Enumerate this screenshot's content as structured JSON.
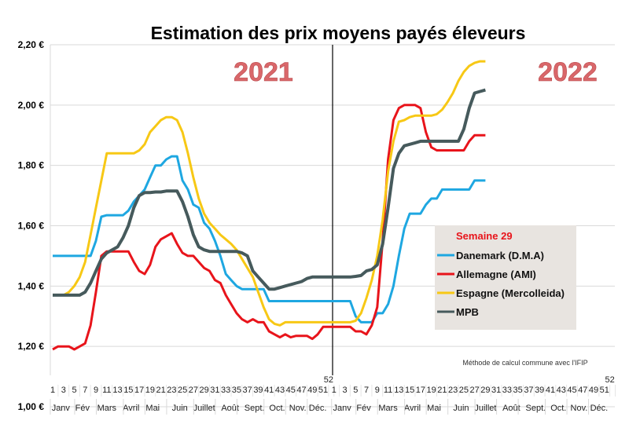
{
  "chart_data": {
    "type": "line",
    "title": "Estimation des prix moyens payés éleveurs",
    "year_labels": [
      "2021",
      "2022"
    ],
    "ylim": [
      1.0,
      2.2
    ],
    "yticks": [
      "1,00 €",
      "1,20 €",
      "1,40 €",
      "1,60 €",
      "1,80 €",
      "2,00 €",
      "2,20 €"
    ],
    "grid": true,
    "x_weeks_per_year": 52,
    "x_tick_labels": [
      "1",
      "3",
      "5",
      "7",
      "9",
      "11",
      "13",
      "15",
      "17",
      "19",
      "21",
      "23",
      "25",
      "27",
      "29",
      "31",
      "33",
      "35",
      "37",
      "39",
      "41",
      "43",
      "45",
      "47",
      "49",
      "51",
      "52"
    ],
    "months": [
      "Janv",
      "Fév",
      "Mars",
      "Avril",
      "Mai",
      "Juin",
      "Juillet",
      "Août",
      "Sept.",
      "Oct.",
      "Nov.",
      "Déc."
    ],
    "legend": {
      "title": "Semaine 29",
      "title_color": "#e8141b",
      "placement": "right",
      "background": "#e8e4e0"
    },
    "note": "Méthode de calcul commune avec l'IFIP",
    "series": [
      {
        "name": "Danemark (D.M.A)",
        "color": "#1ea7e1",
        "y2021": [
          1.5,
          1.5,
          1.5,
          1.5,
          1.5,
          1.5,
          1.5,
          1.5,
          1.55,
          1.63,
          1.635,
          1.635,
          1.635,
          1.635,
          1.65,
          1.68,
          1.7,
          1.72,
          1.76,
          1.8,
          1.8,
          1.82,
          1.83,
          1.83,
          1.75,
          1.72,
          1.67,
          1.66,
          1.61,
          1.59,
          1.55,
          1.5,
          1.44,
          1.42,
          1.4,
          1.39,
          1.39,
          1.39,
          1.39,
          1.39,
          1.35,
          1.35,
          1.35,
          1.35,
          1.35,
          1.35,
          1.35,
          1.35,
          1.35,
          1.35,
          1.35,
          1.35
        ],
        "y2022": [
          1.35,
          1.35,
          1.35,
          1.35,
          1.3,
          1.28,
          1.28,
          1.28,
          1.31,
          1.31,
          1.34,
          1.4,
          1.5,
          1.59,
          1.64,
          1.64,
          1.64,
          1.67,
          1.69,
          1.69,
          1.72,
          1.72,
          1.72,
          1.72,
          1.72,
          1.72,
          1.75,
          1.75,
          1.75
        ]
      },
      {
        "name": "Allemagne (AMI)",
        "color": "#e8141b",
        "y2021": [
          1.19,
          1.2,
          1.2,
          1.2,
          1.19,
          1.2,
          1.21,
          1.27,
          1.38,
          1.5,
          1.515,
          1.515,
          1.515,
          1.515,
          1.515,
          1.48,
          1.45,
          1.44,
          1.47,
          1.53,
          1.555,
          1.565,
          1.575,
          1.54,
          1.51,
          1.5,
          1.5,
          1.48,
          1.46,
          1.45,
          1.42,
          1.41,
          1.37,
          1.34,
          1.31,
          1.29,
          1.28,
          1.29,
          1.28,
          1.28,
          1.25,
          1.24,
          1.23,
          1.24,
          1.23,
          1.235,
          1.235,
          1.235,
          1.225,
          1.24,
          1.265,
          1.265
        ],
        "y2022": [
          1.265,
          1.265,
          1.265,
          1.265,
          1.25,
          1.25,
          1.24,
          1.27,
          1.33,
          1.55,
          1.82,
          1.95,
          1.99,
          2.0,
          2.0,
          2.0,
          1.99,
          1.91,
          1.86,
          1.85,
          1.85,
          1.85,
          1.85,
          1.85,
          1.85,
          1.88,
          1.9,
          1.9,
          1.9
        ]
      },
      {
        "name": "Espagne (Mercolleida)",
        "color": "#f7c815",
        "y2021": [
          1.37,
          1.37,
          1.37,
          1.38,
          1.4,
          1.43,
          1.48,
          1.57,
          1.66,
          1.75,
          1.84,
          1.84,
          1.84,
          1.84,
          1.84,
          1.84,
          1.85,
          1.87,
          1.91,
          1.93,
          1.95,
          1.96,
          1.96,
          1.95,
          1.91,
          1.84,
          1.76,
          1.69,
          1.64,
          1.61,
          1.59,
          1.57,
          1.555,
          1.54,
          1.52,
          1.49,
          1.46,
          1.43,
          1.38,
          1.33,
          1.29,
          1.275,
          1.27,
          1.28,
          1.28,
          1.28,
          1.28,
          1.28,
          1.28,
          1.28,
          1.28,
          1.28
        ],
        "y2022": [
          1.28,
          1.28,
          1.28,
          1.28,
          1.285,
          1.31,
          1.36,
          1.42,
          1.5,
          1.62,
          1.78,
          1.88,
          1.945,
          1.95,
          1.96,
          1.965,
          1.965,
          1.965,
          1.965,
          1.97,
          1.985,
          2.01,
          2.04,
          2.08,
          2.11,
          2.13,
          2.14,
          2.145,
          2.145
        ]
      },
      {
        "name": "MPB",
        "color": "#465a5c",
        "y2021": [
          1.37,
          1.37,
          1.37,
          1.37,
          1.37,
          1.37,
          1.38,
          1.41,
          1.45,
          1.49,
          1.51,
          1.52,
          1.53,
          1.56,
          1.6,
          1.66,
          1.7,
          1.71,
          1.71,
          1.712,
          1.712,
          1.715,
          1.715,
          1.715,
          1.68,
          1.63,
          1.57,
          1.53,
          1.52,
          1.515,
          1.515,
          1.515,
          1.515,
          1.515,
          1.515,
          1.51,
          1.5,
          1.45,
          1.43,
          1.41,
          1.39,
          1.39,
          1.395,
          1.4,
          1.405,
          1.41,
          1.415,
          1.425,
          1.43,
          1.43,
          1.43,
          1.43
        ],
        "y2022": [
          1.43,
          1.43,
          1.43,
          1.43,
          1.432,
          1.435,
          1.45,
          1.455,
          1.47,
          1.54,
          1.66,
          1.79,
          1.84,
          1.865,
          1.87,
          1.875,
          1.88,
          1.88,
          1.88,
          1.88,
          1.88,
          1.88,
          1.88,
          1.88,
          1.92,
          1.99,
          2.04,
          2.045,
          2.05
        ]
      }
    ]
  }
}
